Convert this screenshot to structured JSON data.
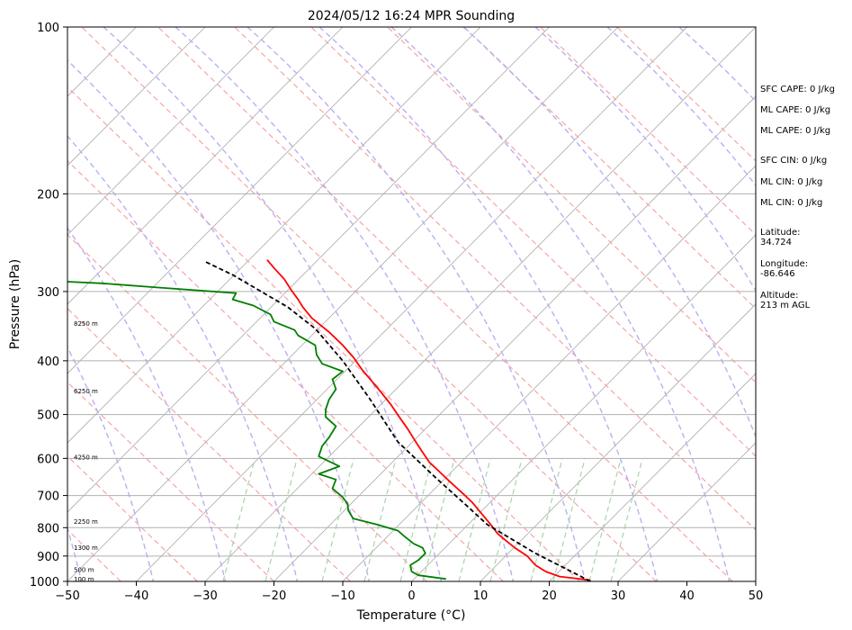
{
  "chart_data": {
    "type": "line",
    "title": "2024/05/12 16:24 MPR Sounding",
    "xlabel": "Temperature (°C)",
    "ylabel": "Pressure (hPa)",
    "xlim": [
      -50,
      50
    ],
    "ylim": [
      1000,
      100
    ],
    "y_scale": "log",
    "x_ticks": [
      -50,
      -40,
      -30,
      -20,
      -10,
      0,
      10,
      20,
      30,
      40,
      50
    ],
    "y_ticks": [
      1000,
      900,
      800,
      700,
      600,
      500,
      400,
      300,
      200,
      100
    ],
    "grid": "horizontal at y ticks",
    "series": [
      {
        "color": "#ff0000",
        "points": [
          [
            26,
            995
          ],
          [
            21.5,
            980
          ],
          [
            19.5,
            960
          ],
          [
            18,
            935
          ],
          [
            16.8,
            900
          ],
          [
            15,
            870
          ],
          [
            13.5,
            840
          ],
          [
            12.5,
            820
          ],
          [
            11.5,
            790
          ],
          [
            9.6,
            740
          ],
          [
            8.8,
            720
          ],
          [
            7.5,
            695
          ],
          [
            5.5,
            660
          ],
          [
            3.8,
            630
          ],
          [
            2.6,
            610
          ],
          [
            1.4,
            580
          ],
          [
            0.6,
            560
          ],
          [
            -0.6,
            530
          ],
          [
            -1.8,
            505
          ],
          [
            -3,
            480
          ],
          [
            -4.5,
            455
          ],
          [
            -5.8,
            435
          ],
          [
            -7.2,
            415
          ],
          [
            -8.4,
            395
          ],
          [
            -10,
            375
          ],
          [
            -12,
            355
          ],
          [
            -14.5,
            335
          ],
          [
            -15.8,
            320
          ],
          [
            -16.5,
            310
          ],
          [
            -17.5,
            298
          ],
          [
            -18.5,
            285
          ],
          [
            -20,
            272
          ],
          [
            -21,
            263
          ]
        ]
      },
      {
        "color": "#008000",
        "points": [
          [
            5,
            990
          ],
          [
            1,
            975
          ],
          [
            0,
            960
          ],
          [
            -0.2,
            935
          ],
          [
            1,
            915
          ],
          [
            2,
            890
          ],
          [
            1.6,
            870
          ],
          [
            0.3,
            855
          ],
          [
            -1,
            830
          ],
          [
            -2,
            810
          ],
          [
            -5,
            790
          ],
          [
            -8.5,
            770
          ],
          [
            -9.2,
            745
          ],
          [
            -9.3,
            725
          ],
          [
            -10,
            705
          ],
          [
            -11.5,
            680
          ],
          [
            -11,
            655
          ],
          [
            -13.5,
            640
          ],
          [
            -10.5,
            620
          ],
          [
            -13.5,
            595
          ],
          [
            -13,
            570
          ],
          [
            -12,
            550
          ],
          [
            -11,
            525
          ],
          [
            -12.5,
            505
          ],
          [
            -12.5,
            490
          ],
          [
            -12,
            470
          ],
          [
            -11,
            450
          ],
          [
            -11.5,
            432
          ],
          [
            -10,
            418
          ],
          [
            -13,
            405
          ],
          [
            -13.8,
            390
          ],
          [
            -14,
            375
          ],
          [
            -16.5,
            360
          ],
          [
            -17,
            352
          ],
          [
            -20,
            340
          ],
          [
            -20.5,
            330
          ],
          [
            -23,
            318
          ],
          [
            -26,
            310
          ],
          [
            -25.5,
            302
          ],
          [
            -37,
            295
          ],
          [
            -45,
            290
          ],
          [
            -50,
            288
          ]
        ]
      },
      {
        "color": "#000000",
        "dashed": true,
        "points": [
          [
            26,
            1000
          ],
          [
            18,
            890
          ],
          [
            11,
            790
          ],
          [
            8,
            730
          ],
          [
            3.5,
            650
          ],
          [
            -2,
            560
          ],
          [
            -6,
            470
          ],
          [
            -10,
            400
          ],
          [
            -14,
            350
          ],
          [
            -18,
            320
          ],
          [
            -26,
            280
          ],
          [
            -30,
            265
          ]
        ]
      }
    ],
    "height_labels": [
      {
        "text": "100 m",
        "p": 988
      },
      {
        "text": "500 m",
        "p": 950
      },
      {
        "text": "1300 m",
        "p": 868
      },
      {
        "text": "2250 m",
        "p": 778
      },
      {
        "text": "4250 m",
        "p": 596
      },
      {
        "text": "6250 m",
        "p": 453
      },
      {
        "text": "8250 m",
        "p": 342
      }
    ]
  },
  "stats": [
    "SFC CAPE: 0 J/kg",
    "ML CAPE: 0 J/kg",
    "ML CAPE: 0 J/kg",
    "SFC CIN: 0 J/kg",
    "ML CIN: 0 J/kg",
    "ML CIN: 0 J/kg"
  ],
  "location": [
    {
      "label": "Latitude:",
      "value": "34.724"
    },
    {
      "label": "Longitude:",
      "value": "-86.646"
    },
    {
      "label": "Altitude:",
      "value": "213 m AGL"
    }
  ]
}
